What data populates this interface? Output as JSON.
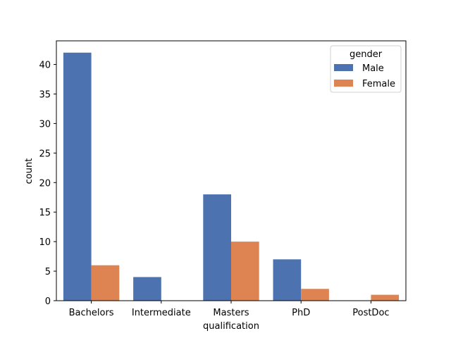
{
  "chart_data": {
    "type": "bar",
    "title": "",
    "xlabel": "qualification",
    "ylabel": "count",
    "categories": [
      "Bachelors",
      "Intermediate",
      "Masters",
      "PhD",
      "PostDoc"
    ],
    "series": [
      {
        "name": "Male",
        "values": [
          42,
          4,
          18,
          7,
          0
        ],
        "color": "#4c72b0"
      },
      {
        "name": "Female",
        "values": [
          6,
          0,
          10,
          2,
          1
        ],
        "color": "#dd8452"
      }
    ],
    "ylim": [
      0,
      44
    ],
    "yticks": [
      0,
      5,
      10,
      15,
      20,
      25,
      30,
      35,
      40
    ],
    "grid": false,
    "legend": {
      "title": "gender",
      "placement": "top-right"
    }
  }
}
